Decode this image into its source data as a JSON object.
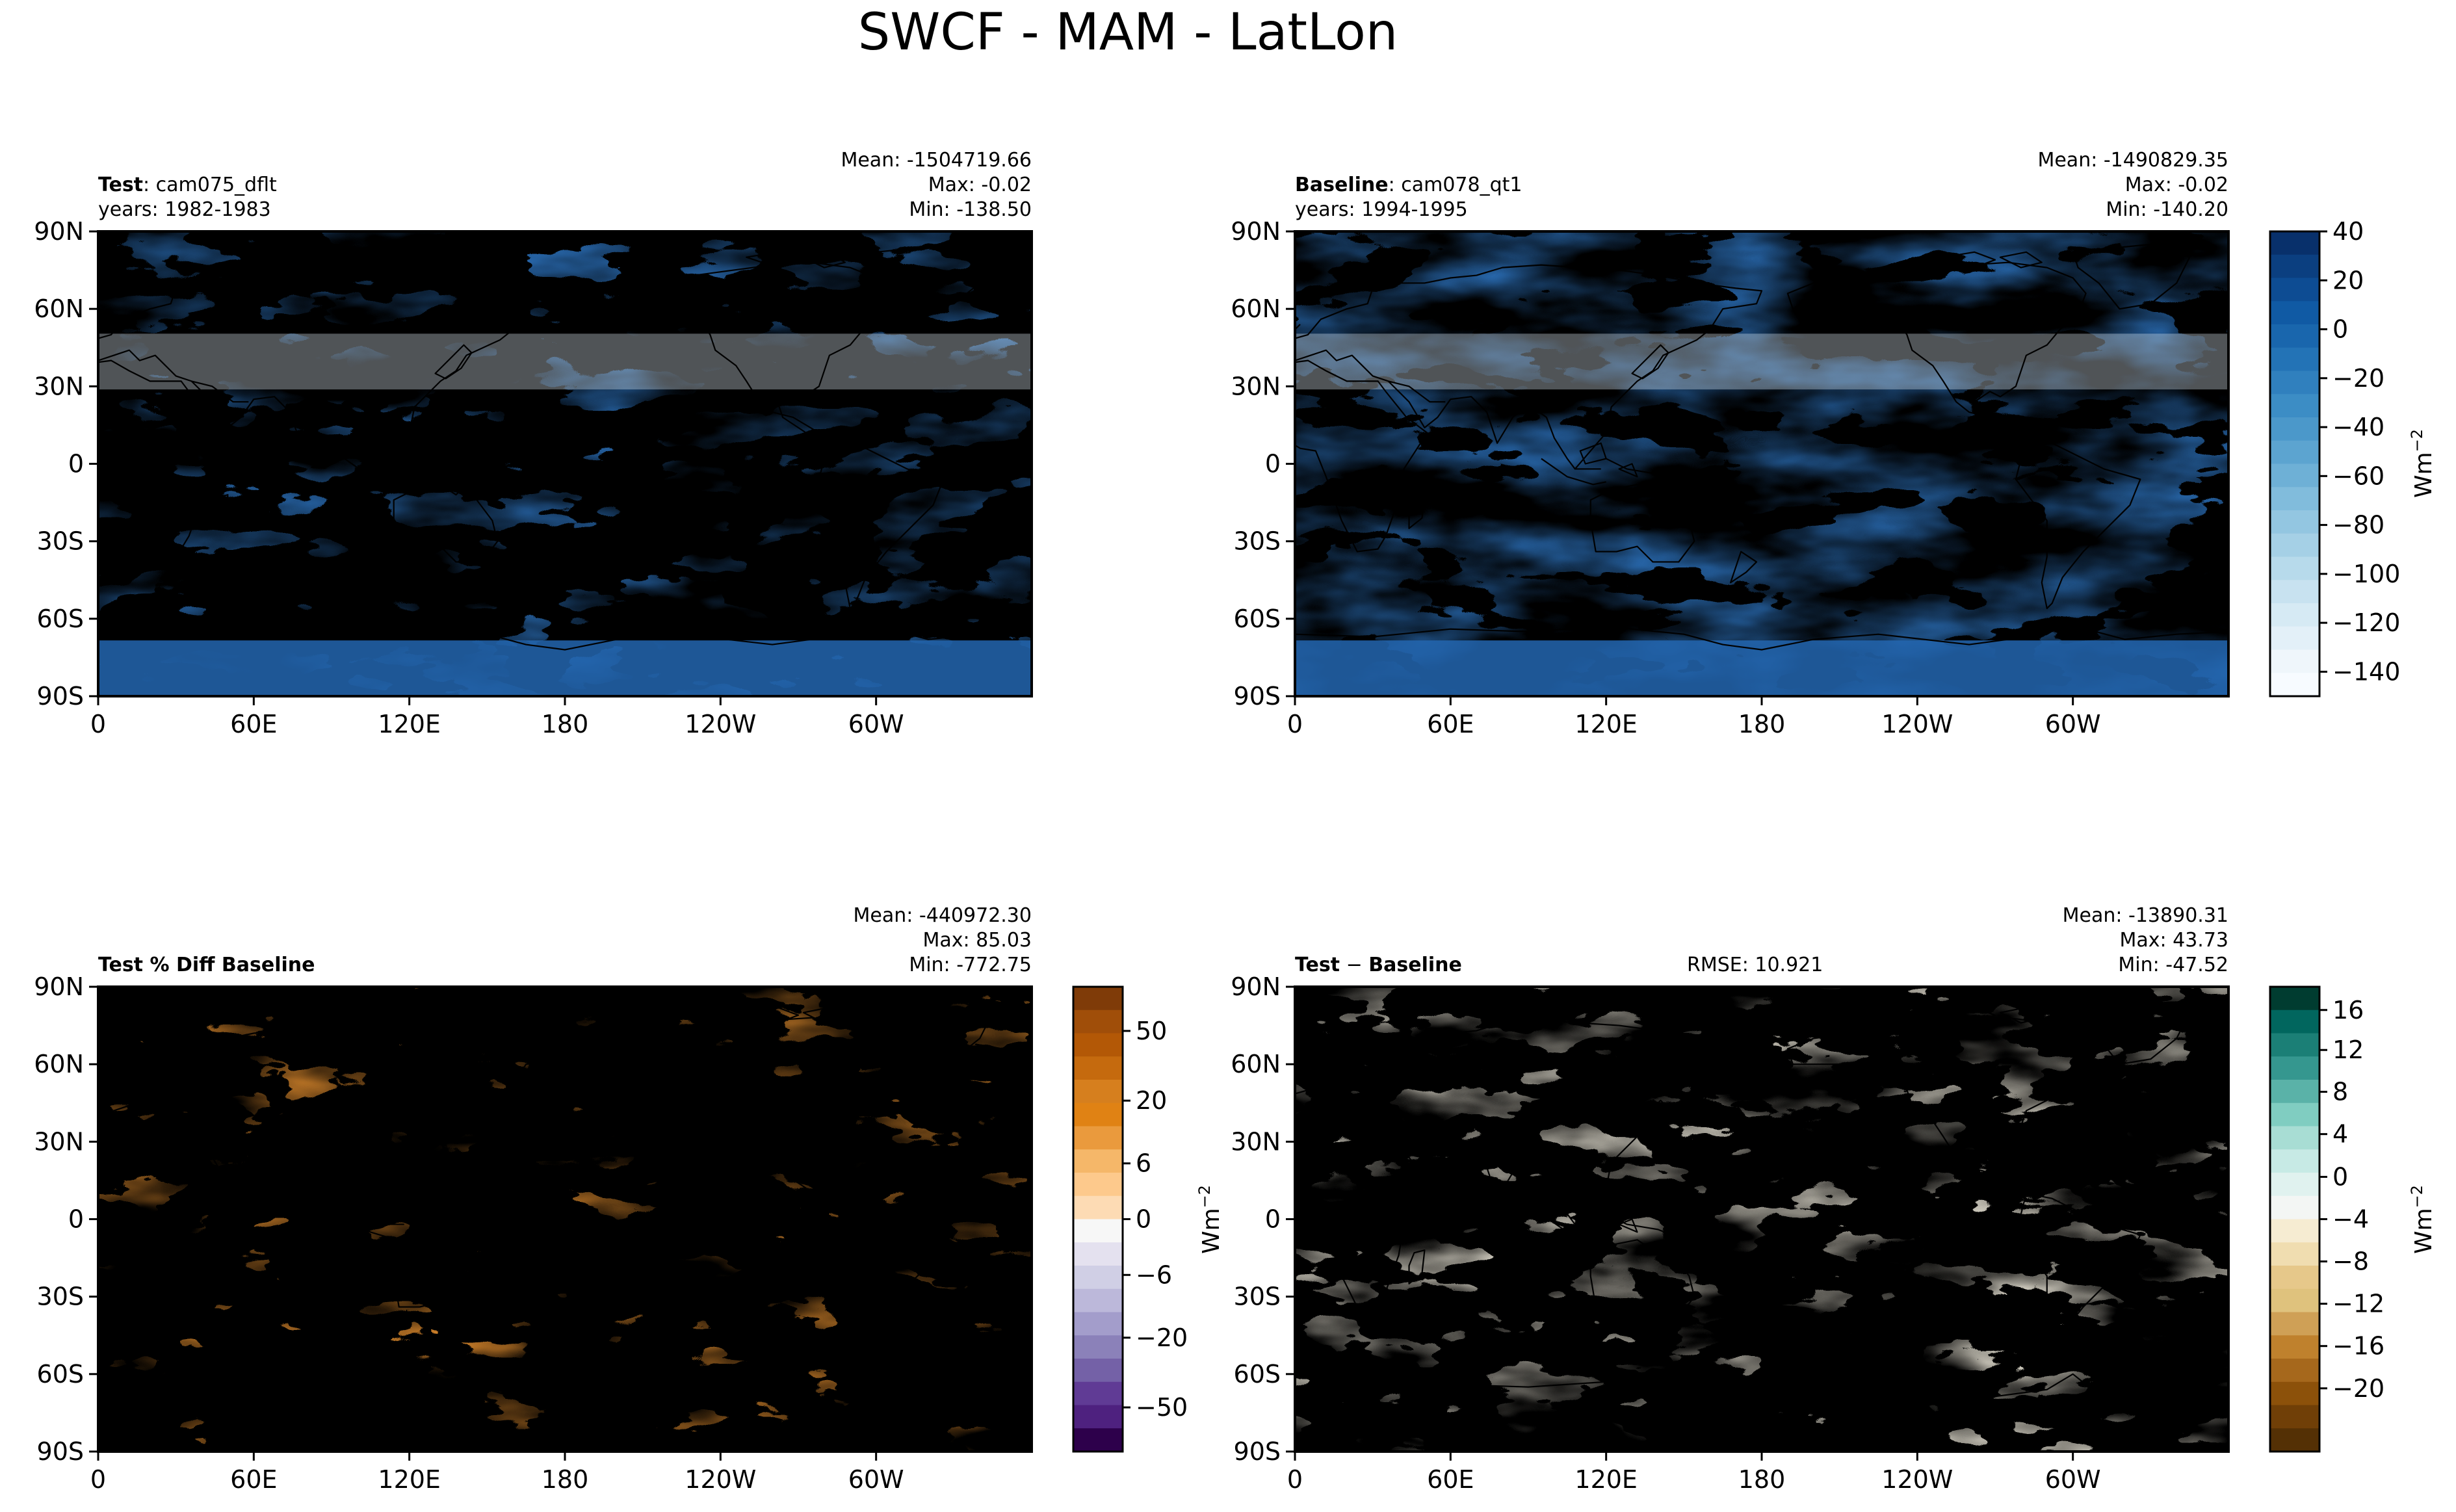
{
  "figure": {
    "title": "SWCF - MAM - LatLon"
  },
  "colors": {
    "ocean_blue_dark": "#1f5fae",
    "ocean_blue_mid": "#4d8ec8",
    "ocean_blue_light": "#c6dbef",
    "diff_orange": "#e08a2a",
    "diff_purple": "#5a3a8c",
    "brbg_brown": "#8c510a",
    "brbg_teal": "#01665e",
    "coast": "#000000"
  },
  "chart_data": [
    {
      "type": "heatmap",
      "panel": "test",
      "label_bold": "Test",
      "label_rest": ": cam075_dflt",
      "years": "years: 1982-1983",
      "stats": [
        "Mean: -1504719.66",
        "Max: -0.02",
        "Min: -138.50"
      ],
      "x_ticks": [
        "0",
        "60E",
        "120E",
        "180",
        "120W",
        "60W"
      ],
      "y_ticks": [
        "90N",
        "60N",
        "30N",
        "0",
        "30S",
        "60S",
        "90S"
      ],
      "xlim": [
        0,
        360
      ],
      "ylim": [
        -90,
        90
      ],
      "colormap": "Blues_r"
    },
    {
      "type": "heatmap",
      "panel": "baseline",
      "label_bold": "Baseline",
      "label_rest": ": cam078_qt1",
      "years": "years: 1994-1995",
      "stats": [
        "Mean: -1490829.35",
        "Max: -0.02",
        "Min: -140.20"
      ],
      "x_ticks": [
        "0",
        "60E",
        "120E",
        "180",
        "120W",
        "60W"
      ],
      "y_ticks": [
        "90N",
        "60N",
        "30N",
        "0",
        "30S",
        "60S",
        "90S"
      ],
      "xlim": [
        0,
        360
      ],
      "ylim": [
        -90,
        90
      ],
      "colormap": "Blues_r",
      "colorbar": {
        "ticks": [
          "40",
          "20",
          "0",
          "−20",
          "−40",
          "−60",
          "−80",
          "−100",
          "−120",
          "−140"
        ],
        "values": [
          40,
          20,
          0,
          -20,
          -40,
          -60,
          -80,
          -100,
          -120,
          -140
        ],
        "range": [
          -150,
          40
        ],
        "label": "Wm",
        "label_exp": "−2"
      }
    },
    {
      "type": "heatmap",
      "panel": "pct_diff",
      "label_bold": "Test % Diff Baseline",
      "stats": [
        "Mean: -440972.30",
        "Max: 85.03",
        "Min: -772.75"
      ],
      "x_ticks": [
        "0",
        "60E",
        "120E",
        "180",
        "120W",
        "60W"
      ],
      "y_ticks": [
        "90N",
        "60N",
        "30N",
        "0",
        "30S",
        "60S",
        "90S"
      ],
      "xlim": [
        0,
        360
      ],
      "ylim": [
        -90,
        90
      ],
      "colormap": "PuOr",
      "colorbar": {
        "ticks": [
          "50",
          "20",
          "6",
          "0",
          "−6",
          "−20",
          "−50"
        ],
        "label": "Wm",
        "label_exp": "−2"
      }
    },
    {
      "type": "heatmap",
      "panel": "diff",
      "label_bold": "Test",
      "label_mid": " − ",
      "label_bold2": "Baseline",
      "rmse": "RMSE: 10.921",
      "stats": [
        "Mean: -13890.31",
        "Max: 43.73",
        "Min: -47.52"
      ],
      "x_ticks": [
        "0",
        "60E",
        "120E",
        "180",
        "120W",
        "60W"
      ],
      "y_ticks": [
        "90N",
        "60N",
        "30N",
        "0",
        "30S",
        "60S",
        "90S"
      ],
      "xlim": [
        0,
        360
      ],
      "ylim": [
        -90,
        90
      ],
      "colormap": "BrBG",
      "colorbar": {
        "ticks": [
          "16",
          "12",
          "8",
          "4",
          "0",
          "−4",
          "−8",
          "−12",
          "−16",
          "−20"
        ],
        "label": "Wm",
        "label_exp": "−2"
      }
    }
  ]
}
